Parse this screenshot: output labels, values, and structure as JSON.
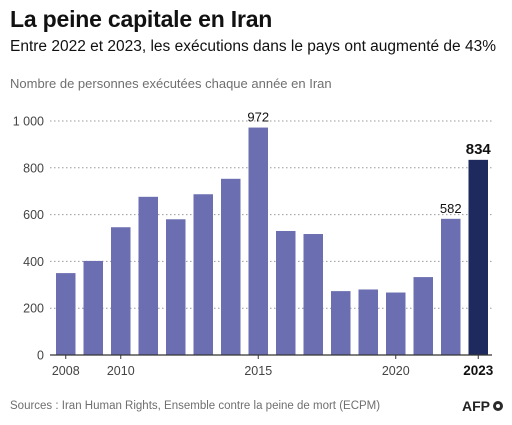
{
  "header": {
    "title": "La peine capitale en Iran",
    "subtitle": "Entre 2022 et 2023, les exécutions dans le pays ont augmenté de 43%",
    "unit_label": "Nombre de personnes exécutées chaque année en Iran"
  },
  "footer": {
    "source": "Sources : Iran Human Rights, Ensemble contre la peine de mort (ECPM)",
    "logo_text": "AFP"
  },
  "colors": {
    "bar": "#6b6fb1",
    "bar_highlight": "#1e2a5e",
    "grid": "#9a9a9a",
    "text": "#222222"
  },
  "chart_data": {
    "type": "bar",
    "title": "",
    "xlabel": "",
    "ylabel": "",
    "x": [
      2008,
      2009,
      2010,
      2011,
      2012,
      2013,
      2014,
      2015,
      2016,
      2017,
      2018,
      2019,
      2020,
      2021,
      2022,
      2023
    ],
    "values": [
      350,
      402,
      546,
      676,
      580,
      687,
      753,
      972,
      530,
      517,
      273,
      280,
      267,
      333,
      582,
      834
    ],
    "highlight": 2023,
    "data_labels": {
      "2015": "972",
      "2022": "582",
      "2023": "834"
    },
    "x_tick_labels": [
      "2008",
      "2010",
      "2015",
      "2020",
      "2023"
    ],
    "y_tick_labels": [
      "0",
      "200",
      "400",
      "600",
      "800",
      "1 000"
    ],
    "y_ticks": [
      0,
      200,
      400,
      600,
      800,
      1000
    ],
    "ylim": [
      0,
      1000
    ],
    "grid": "horizontal dotted"
  }
}
